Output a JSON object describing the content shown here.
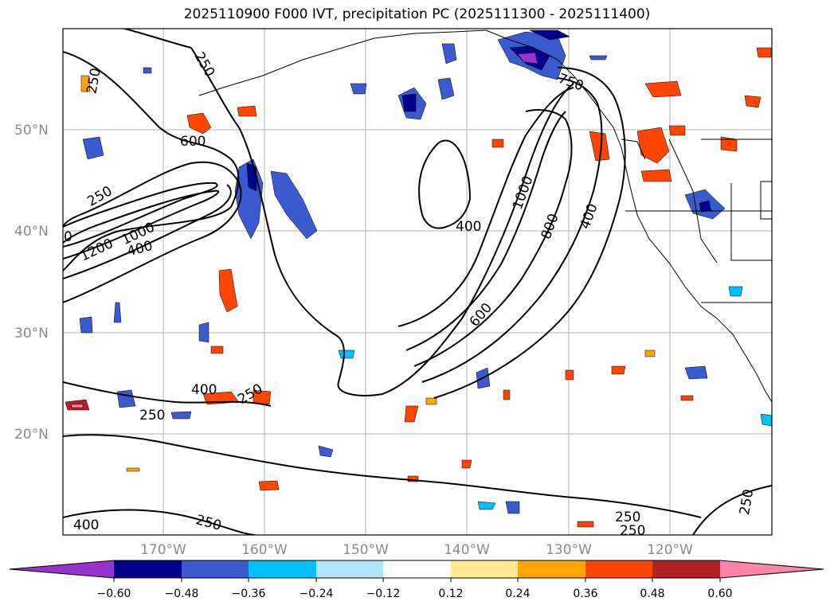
{
  "title": "2025110900 F000 IVT, precipitation PC (2025111300 - 2025111400)",
  "map": {
    "lat_labels": [
      "50°N",
      "40°N",
      "30°N",
      "20°N"
    ],
    "lon_labels": [
      "170°W",
      "160°W",
      "150°W",
      "140°W",
      "130°W",
      "120°W"
    ],
    "contour_labels": [
      "250",
      "250",
      "600",
      "250",
      "1200",
      "1000",
      "400",
      "0",
      "400",
      "400",
      "1000",
      "800",
      "400",
      "250",
      "600",
      "250",
      "250",
      "250",
      "250",
      "250",
      "400",
      "250",
      "750"
    ]
  },
  "colorbar": {
    "ticks": [
      "−0.60",
      "−0.48",
      "−0.36",
      "−0.24",
      "−0.12",
      "0.12",
      "0.24",
      "0.36",
      "0.48",
      "0.60"
    ],
    "colors": [
      "#9932cc",
      "#00008b",
      "#3a5bd0",
      "#00bfff",
      "#afe4fb",
      "#ffffff",
      "#ffe993",
      "#ffa500",
      "#ff4500",
      "#b22222",
      "#ff85aa"
    ]
  }
}
